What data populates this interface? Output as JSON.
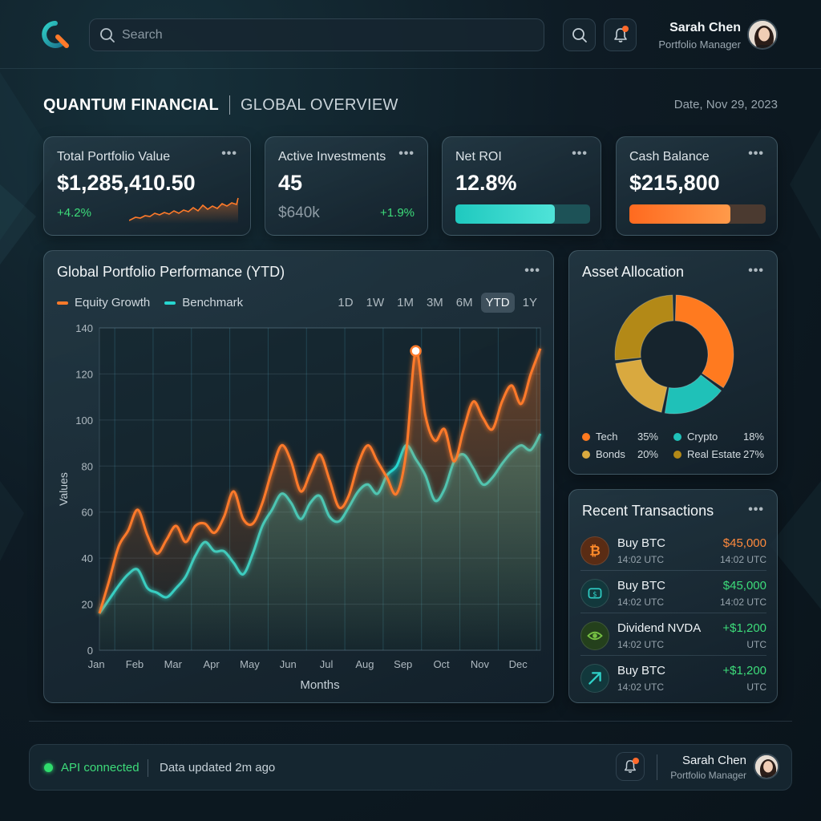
{
  "app": {
    "brand": "QUANTUM FINANCIAL",
    "section": "GLOBAL OVERVIEW",
    "date": "Date, Nov 29, 2023"
  },
  "search": {
    "placeholder": "Search"
  },
  "user": {
    "name": "Sarah Chen",
    "role": "Portfolio Manager"
  },
  "kpis": {
    "portfolio": {
      "label": "Total Portfolio Value",
      "value": "$1,285,410.50",
      "change": "+4.2%"
    },
    "investments": {
      "label": "Active Investments",
      "value": "45",
      "amount": "$640k",
      "change": "+1.9%"
    },
    "roi": {
      "label": "Net ROI",
      "value": "12.8%",
      "progress": 0.74
    },
    "cash": {
      "label": "Cash Balance",
      "value": "$215,800",
      "progress": 0.74
    }
  },
  "more_label": "•••",
  "performance": {
    "title": "Global Portfolio Performance (YTD)",
    "ranges": [
      "1D",
      "1W",
      "1M",
      "3M",
      "6M",
      "YTD",
      "1Y"
    ],
    "active_range": "YTD"
  },
  "chart_data": {
    "type": "line",
    "title": "Global Portfolio Performance (YTD)",
    "xlabel": "Months",
    "ylabel": "Values",
    "ylim": [
      0,
      140
    ],
    "yticks": [
      0,
      20,
      40,
      60,
      80,
      100,
      120,
      140
    ],
    "categories": [
      "Jan",
      "Feb",
      "Mar",
      "Apr",
      "May",
      "Jun",
      "Jul",
      "Aug",
      "Sep",
      "Oct",
      "Nov",
      "Dec"
    ],
    "x": [
      0,
      0.25,
      0.5,
      0.75,
      1,
      1.25,
      1.5,
      1.75,
      2,
      2.25,
      2.5,
      2.75,
      3,
      3.25,
      3.5,
      3.75,
      4,
      4.25,
      4.5,
      4.75,
      5,
      5.25,
      5.5,
      5.75,
      6,
      6.25,
      6.5,
      6.75,
      7,
      7.25,
      7.5,
      7.75,
      8,
      8.25,
      8.5,
      8.75,
      9,
      9.25,
      9.5,
      9.75,
      10,
      10.25,
      10.5,
      10.75,
      11,
      11.25,
      11.5
    ],
    "series": [
      {
        "name": "Equity Growth",
        "color": "#ff7a2a",
        "values": [
          16,
          30,
          45,
          52,
          61,
          50,
          42,
          48,
          54,
          47,
          54,
          55,
          51,
          58,
          69,
          57,
          55,
          64,
          78,
          89,
          82,
          69,
          77,
          85,
          74,
          62,
          67,
          81,
          89,
          82,
          75,
          68,
          86,
          130,
          102,
          91,
          96,
          82,
          96,
          108,
          101,
          96,
          108,
          115,
          107,
          120,
          131
        ]
      },
      {
        "name": "Benchmark",
        "color": "#27d6d0",
        "values": [
          16,
          22,
          28,
          33,
          35,
          27,
          25,
          23,
          27,
          32,
          41,
          47,
          43,
          43,
          38,
          33,
          42,
          54,
          61,
          68,
          64,
          57,
          64,
          67,
          58,
          56,
          62,
          69,
          72,
          68,
          76,
          80,
          89,
          83,
          76,
          65,
          70,
          82,
          85,
          79,
          72,
          75,
          81,
          86,
          89,
          87,
          94
        ]
      }
    ],
    "highlight": {
      "series": "Equity Growth",
      "x": 8.25,
      "y": 130
    },
    "grid": true,
    "legend": "top-left"
  },
  "allocation": {
    "title": "Asset Allocation",
    "items": [
      {
        "label": "Tech",
        "pct": "35%",
        "value": 35,
        "color": "#ff7a1f"
      },
      {
        "label": "Crypto",
        "pct": "18%",
        "value": 18,
        "color": "#1fc1b8"
      },
      {
        "label": "Bonds",
        "pct": "20%",
        "value": 20,
        "color": "#d9a93f"
      },
      {
        "label": "Real Estate",
        "pct": "27%",
        "value": 27,
        "color": "#b38917"
      }
    ]
  },
  "transactions": {
    "title": "Recent Transactions",
    "items": [
      {
        "title": "Buy BTC",
        "time": "14:02 UTC",
        "amount": "$45,000",
        "sub": "14:02 UTC",
        "icon": "bitcoin-icon",
        "amount_color": "#ff8a3d"
      },
      {
        "title": "Buy BTC",
        "time": "14:02 UTC",
        "amount": "$45,000",
        "sub": "14:02 UTC",
        "icon": "coin-stack-icon",
        "amount_color": "#3ddc7a"
      },
      {
        "title": "Dividend NVDA",
        "time": "14:02 UTC",
        "amount": "+$1,200",
        "sub": "UTC",
        "icon": "nvidia-logo-icon",
        "amount_color": "#3ddc7a"
      },
      {
        "title": "Buy BTC",
        "time": "14:02 UTC",
        "amount": "+$1,200",
        "sub": "UTC",
        "icon": "arrow-up-right-icon",
        "amount_color": "#3ddc7a"
      }
    ]
  },
  "status": {
    "api": "API connected",
    "updated": "Data updated 2m ago"
  }
}
